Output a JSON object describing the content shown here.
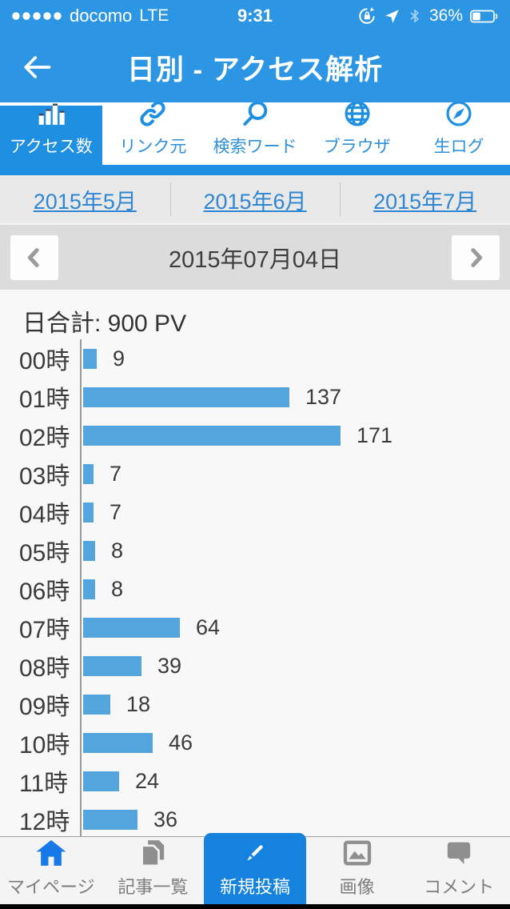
{
  "colors": {
    "header_blue": "#2d96e4",
    "accent_blue": "#1f8fe2",
    "bottom_selected_blue": "#1583dd",
    "bar_blue": "#54a5dd",
    "link_blue": "#2f86d2",
    "home_icon_blue": "#1778e8",
    "icon_gray": "#8f8f8f"
  },
  "status_bar": {
    "signal_dots": 5,
    "carrier": "docomo",
    "network": "LTE",
    "time": "9:31",
    "battery_percent": "36%",
    "battery_level": 0.36,
    "right_icons": [
      "rotation-lock-icon",
      "location-icon",
      "bluetooth-icon",
      "battery-icon"
    ]
  },
  "header": {
    "title": "日別 - アクセス解析"
  },
  "top_tabs": [
    {
      "name": "access-count",
      "label": "アクセス数",
      "icon": "bar-chart-icon",
      "selected": true
    },
    {
      "name": "link-source",
      "label": "リンク元",
      "icon": "link-icon",
      "selected": false
    },
    {
      "name": "search-word",
      "label": "検索ワード",
      "icon": "search-icon",
      "selected": false
    },
    {
      "name": "browser",
      "label": "ブラウザ",
      "icon": "globe-icon",
      "selected": false
    },
    {
      "name": "raw-log",
      "label": "生ログ",
      "icon": "compass-icon",
      "selected": false
    }
  ],
  "month_links": [
    "2015年5月",
    "2015年6月",
    "2015年7月"
  ],
  "date_nav": {
    "date": "2015年07月04日"
  },
  "chart_data": {
    "type": "bar",
    "orientation": "horizontal",
    "title": "日合計: 900 PV",
    "total_pv": 900,
    "categories": [
      "00時",
      "01時",
      "02時",
      "03時",
      "04時",
      "05時",
      "06時",
      "07時",
      "08時",
      "09時",
      "10時",
      "11時",
      "12時"
    ],
    "values": [
      9,
      137,
      171,
      7,
      7,
      8,
      8,
      64,
      39,
      18,
      46,
      24,
      36
    ],
    "xlim": [
      0,
      171
    ],
    "value_labels": true,
    "bar_color": "#54a5dd",
    "grid": false,
    "legend": "none"
  },
  "bottom_nav": [
    {
      "name": "my-page",
      "label": "マイページ",
      "icon": "home-icon",
      "selected": false,
      "icon_color": "#1778e8"
    },
    {
      "name": "article-list",
      "label": "記事一覧",
      "icon": "documents-icon",
      "selected": false
    },
    {
      "name": "new-post",
      "label": "新規投稿",
      "icon": "pencil-icon",
      "selected": true
    },
    {
      "name": "images",
      "label": "画像",
      "icon": "image-icon",
      "selected": false
    },
    {
      "name": "comments",
      "label": "コメント",
      "icon": "comment-icon",
      "selected": false
    }
  ]
}
